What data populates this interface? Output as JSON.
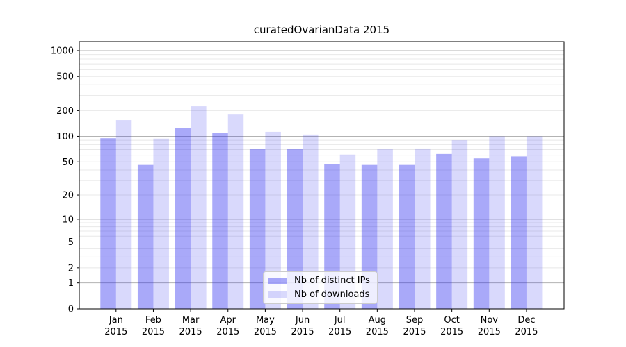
{
  "chart_data": {
    "type": "bar",
    "title": "curatedOvarianData 2015",
    "categories": [
      "Jan\n2015",
      "Feb\n2015",
      "Mar\n2015",
      "Apr\n2015",
      "May\n2015",
      "Jun\n2015",
      "Jul\n2015",
      "Aug\n2015",
      "Sep\n2015",
      "Oct\n2015",
      "Nov\n2015",
      "Dec\n2015"
    ],
    "series": [
      {
        "name": "Nb of distinct IPs",
        "color": "rgba(30,30,240,0.38)",
        "solid_color": "#a9a9f9",
        "values": [
          95,
          46,
          124,
          109,
          71,
          71,
          47,
          46,
          46,
          62,
          55,
          58
        ]
      },
      {
        "name": "Nb of downloads",
        "color": "rgba(30,30,240,0.17)",
        "solid_color": "#d8d8fb",
        "values": [
          155,
          94,
          225,
          183,
          113,
          105,
          61,
          71,
          72,
          90,
          100,
          100
        ]
      }
    ],
    "y_axis": {
      "scale": "log1p",
      "tick_values": [
        0,
        1,
        2,
        5,
        10,
        20,
        50,
        100,
        200,
        500,
        1000
      ],
      "tick_labels": [
        "0",
        "1",
        "2",
        "5",
        "10",
        "20",
        "50",
        "100",
        "200",
        "500",
        "1000"
      ],
      "top_value": 1300
    },
    "x_axis": {
      "year_row": "2015"
    },
    "grid": {
      "minor_color": "#e8e8e8",
      "major_color": "#b3b3b3",
      "major_values": [
        1,
        10,
        100,
        1000
      ]
    },
    "legend": {
      "position": "lower center"
    },
    "colors": {
      "background": "#ffffff",
      "axis": "#000000",
      "text": "#000000"
    }
  }
}
